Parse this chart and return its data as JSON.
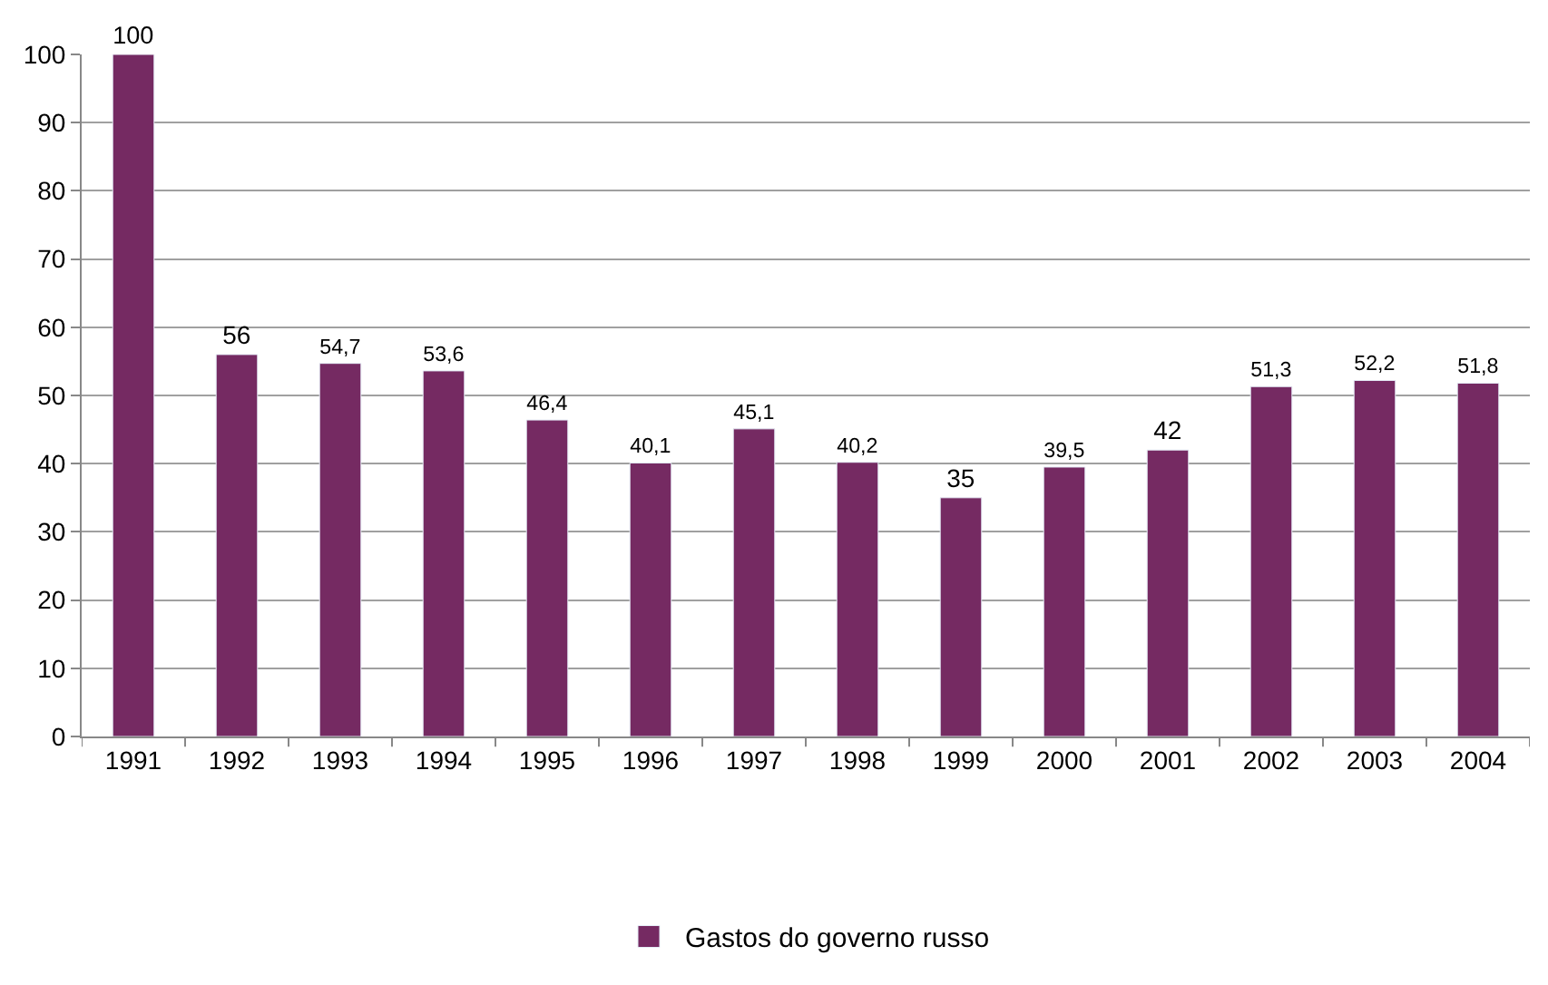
{
  "chart_data": {
    "type": "bar",
    "categories": [
      "1991",
      "1992",
      "1993",
      "1994",
      "1995",
      "1996",
      "1997",
      "1998",
      "1999",
      "2000",
      "2001",
      "2002",
      "2003",
      "2004"
    ],
    "series": [
      {
        "name": "Gastos do governo russo",
        "color": "#752a62",
        "values": [
          100,
          56,
          54.7,
          53.6,
          46.4,
          40.1,
          45.1,
          40.2,
          35,
          39.5,
          42,
          51.3,
          52.2,
          51.8
        ],
        "value_labels": [
          "100",
          "56",
          "54,7",
          "53,6",
          "46,4",
          "40,1",
          "45,1",
          "40,2",
          "35",
          "39,5",
          "42",
          "51,3",
          "52,2",
          "51,8"
        ]
      }
    ],
    "ylim": [
      0,
      100
    ],
    "yticks": [
      0,
      10,
      20,
      30,
      40,
      50,
      60,
      70,
      80,
      90,
      100
    ],
    "grid": "y",
    "legend": "bottom"
  }
}
